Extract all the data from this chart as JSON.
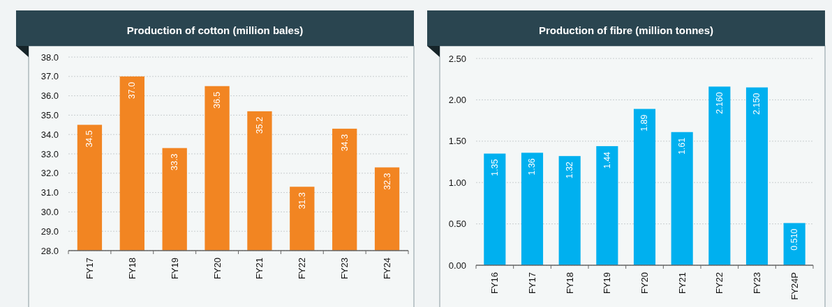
{
  "chart_data": [
    {
      "type": "bar",
      "title": "Production of cotton (million bales)",
      "categories": [
        "FY17",
        "FY18",
        "FY19",
        "FY20",
        "FY21",
        "FY22",
        "FY23",
        "FY24"
      ],
      "values": [
        34.5,
        37.0,
        33.3,
        36.5,
        35.2,
        31.3,
        34.3,
        32.3
      ],
      "value_labels": [
        "34.5",
        "37.0",
        "33.3",
        "36.5",
        "35.2",
        "31.3",
        "34.3",
        "32.3"
      ],
      "color": "#f28522",
      "ylim": [
        28,
        38
      ],
      "yticks": [
        {
          "value": 28,
          "label": "28.0"
        },
        {
          "value": 29,
          "label": "29.0"
        },
        {
          "value": 30,
          "label": "30.0"
        },
        {
          "value": 31,
          "label": "31.0"
        },
        {
          "value": 32,
          "label": "32.0"
        },
        {
          "value": 33,
          "label": "33.0"
        },
        {
          "value": 34,
          "label": "34.0"
        },
        {
          "value": 35,
          "label": "35.0"
        },
        {
          "value": 36,
          "label": "36.0"
        },
        {
          "value": 37,
          "label": "37.0"
        },
        {
          "value": 38,
          "label": "38.0"
        }
      ],
      "grid": "y"
    },
    {
      "type": "bar",
      "title": "Production of fibre (million tonnes)",
      "categories": [
        "FY16",
        "FY17",
        "FY18",
        "FY19",
        "FY20",
        "FY21",
        "FY22",
        "FY23",
        "FY24P"
      ],
      "values": [
        1.35,
        1.36,
        1.32,
        1.44,
        1.89,
        1.61,
        2.16,
        2.15,
        0.51
      ],
      "value_labels": [
        "1.35",
        "1.36",
        "1.32",
        "1.44",
        "1.89",
        "1.61",
        "2.160",
        "2.150",
        "0.510"
      ],
      "color": "#00b0ef",
      "ylim": [
        0,
        2.5
      ],
      "yticks": [
        {
          "value": 0,
          "label": "0.00"
        },
        {
          "value": 0.5,
          "label": "0.50"
        },
        {
          "value": 1,
          "label": "1.00"
        },
        {
          "value": 1.5,
          "label": "1.50"
        },
        {
          "value": 2,
          "label": "2.00"
        },
        {
          "value": 2.5,
          "label": "2.50"
        }
      ],
      "grid": "y"
    }
  ]
}
